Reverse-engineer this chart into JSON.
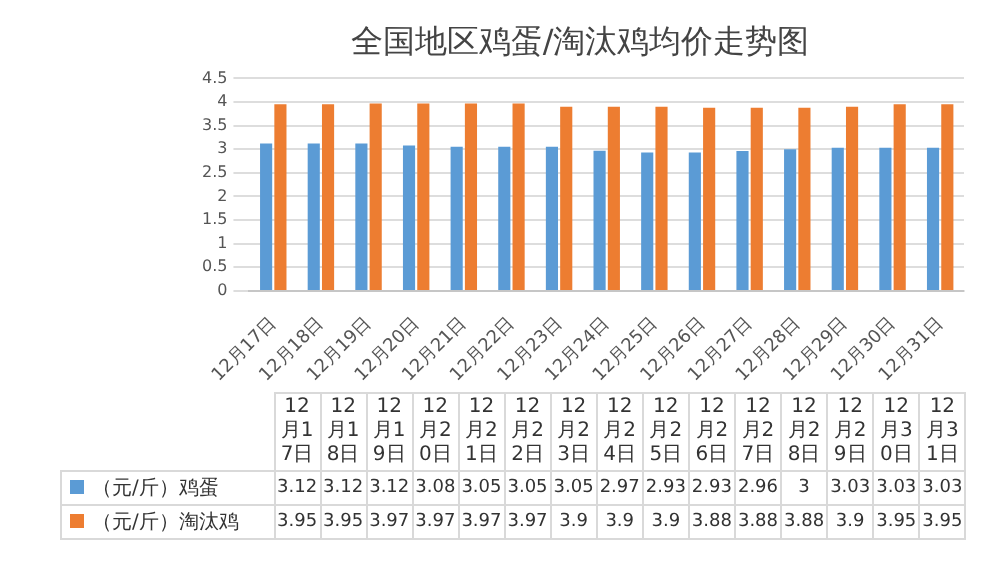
{
  "chart_data": {
    "type": "bar",
    "title": "全国地区鸡蛋/淘汰鸡均价走势图",
    "categories": [
      "12月17日",
      "12月18日",
      "12月19日",
      "12月20日",
      "12月21日",
      "12月22日",
      "12月23日",
      "12月24日",
      "12月25日",
      "12月26日",
      "12月27日",
      "12月28日",
      "12月29日",
      "12月30日",
      "12月31日"
    ],
    "series": [
      {
        "name": "（元/斤）鸡蛋",
        "color": "#5b9bd5",
        "values": [
          3.12,
          3.12,
          3.12,
          3.08,
          3.05,
          3.05,
          3.05,
          2.97,
          2.93,
          2.93,
          2.96,
          3,
          3.03,
          3.03,
          3.03
        ]
      },
      {
        "name": "（元/斤）淘汰鸡",
        "color": "#ed7d31",
        "values": [
          3.95,
          3.95,
          3.97,
          3.97,
          3.97,
          3.97,
          3.9,
          3.9,
          3.9,
          3.88,
          3.88,
          3.88,
          3.9,
          3.95,
          3.95
        ]
      }
    ],
    "ylim": [
      0,
      4.5
    ],
    "yticks": [
      0,
      0.5,
      1,
      1.5,
      2,
      2.5,
      3,
      3.5,
      4,
      4.5
    ],
    "grid": "y",
    "legend": "bottom",
    "data_labels": true
  }
}
